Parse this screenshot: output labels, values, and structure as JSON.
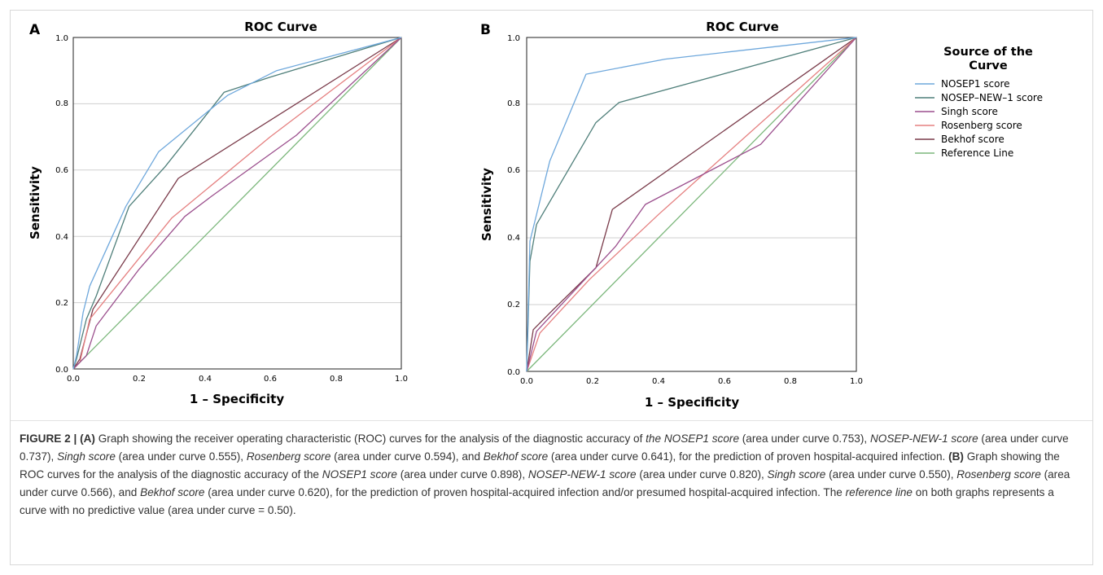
{
  "panels": [
    {
      "panel_label": "A",
      "title": "ROC Curve",
      "xlabel": "1 – Specificity",
      "ylabel": "Sensitivity",
      "x_ticks": [
        "0.0",
        "0.2",
        "0.4",
        "0.6",
        "0.8",
        "1.0"
      ],
      "y_ticks": [
        "0.0",
        "0.2",
        "0.4",
        "0.6",
        "0.8",
        "1.0"
      ]
    },
    {
      "panel_label": "B",
      "title": "ROC Curve",
      "xlabel": "1 – Specificity",
      "ylabel": "Sensitivity",
      "x_ticks": [
        "0.0",
        "0.2",
        "0.4",
        "0.6",
        "0.8",
        "1.0"
      ],
      "y_ticks": [
        "0.0",
        "0.2",
        "0.4",
        "0.6",
        "0.8",
        "1.0"
      ]
    }
  ],
  "legend": {
    "title_line1": "Source of the",
    "title_line2": "Curve",
    "entries": [
      {
        "label": "NOSEP1 score",
        "color": "#6fa8dc"
      },
      {
        "label": "NOSEP–NEW–1 score",
        "color": "#4f7f7a"
      },
      {
        "label": "Singh score",
        "color": "#9b4f8d"
      },
      {
        "label": "Rosenberg score",
        "color": "#e58080"
      },
      {
        "label": "Bekhof score",
        "color": "#7a3b4a"
      },
      {
        "label": "Reference Line",
        "color": "#7bb77b"
      }
    ]
  },
  "caption": {
    "fig_label": "FIGURE 2 |",
    "a_label": "(A)",
    "b_label": "(B)",
    "s01": " Graph showing the receiver operating characteristic (ROC) curves for the analysis of the diagnostic accuracy of ",
    "s02": "the NOSEP1 score",
    "s03": " (area under curve 0.753), ",
    "s04": "NOSEP-NEW-1 score",
    "s05": " (area under curve 0.737), ",
    "s06": "Singh score",
    "s07": " (area under curve 0.555), ",
    "s08": "Rosenberg score",
    "s09": " (area under curve 0.594), and ",
    "s10": "Bekhof score",
    "s11": " (area under curve 0.641), for the prediction of proven hospital-acquired infection. ",
    "s12": " Graph showing the ROC curves for the analysis of the diagnostic accuracy of the ",
    "s13": "NOSEP1 score",
    "s14": " (area under curve 0.898), ",
    "s15": "NOSEP-NEW-1 score",
    "s16": " (area under curve 0.820), ",
    "s17": "Singh score",
    "s18": " (area under curve 0.550), ",
    "s19": "Rosenberg score",
    "s20": " (area under curve 0.566), and ",
    "s21": "Bekhof score",
    "s22": " (area under curve 0.620), for the prediction of proven hospital-acquired infection and/or presumed hospital-acquired infection. The ",
    "s23": "reference line",
    "s24": " on both graphs represents a curve with no predictive value (area under curve = 0.50)."
  },
  "chart_data": [
    {
      "type": "line",
      "panel": "A",
      "title": "ROC Curve",
      "xlabel": "1 – Specificity",
      "ylabel": "Sensitivity",
      "xlim": [
        0,
        1
      ],
      "ylim": [
        0,
        1
      ],
      "grid": "horizontal",
      "series": [
        {
          "name": "NOSEP1 score",
          "color": "#6fa8dc",
          "points": [
            [
              0,
              0
            ],
            [
              0.01,
              0.04
            ],
            [
              0.03,
              0.17
            ],
            [
              0.05,
              0.25
            ],
            [
              0.16,
              0.49
            ],
            [
              0.26,
              0.655
            ],
            [
              0.47,
              0.825
            ],
            [
              0.62,
              0.9
            ],
            [
              1,
              1
            ]
          ]
        },
        {
          "name": "NOSEP–NEW–1 score",
          "color": "#4f7f7a",
          "points": [
            [
              0,
              0
            ],
            [
              0.01,
              0.03
            ],
            [
              0.04,
              0.15
            ],
            [
              0.07,
              0.22
            ],
            [
              0.17,
              0.49
            ],
            [
              0.28,
              0.61
            ],
            [
              0.46,
              0.835
            ],
            [
              0.6,
              0.88
            ],
            [
              1,
              1
            ]
          ]
        },
        {
          "name": "Singh score",
          "color": "#9b4f8d",
          "points": [
            [
              0,
              0
            ],
            [
              0.04,
              0.04
            ],
            [
              0.07,
              0.13
            ],
            [
              0.2,
              0.3
            ],
            [
              0.34,
              0.46
            ],
            [
              0.42,
              0.52
            ],
            [
              0.68,
              0.705
            ],
            [
              1,
              1
            ]
          ]
        },
        {
          "name": "Rosenberg score",
          "color": "#e58080",
          "points": [
            [
              0,
              0
            ],
            [
              0.02,
              0.02
            ],
            [
              0.05,
              0.15
            ],
            [
              0.3,
              0.455
            ],
            [
              0.6,
              0.7
            ],
            [
              1,
              1
            ]
          ]
        },
        {
          "name": "Bekhof score",
          "color": "#7a3b4a",
          "points": [
            [
              0,
              0
            ],
            [
              0.02,
              0.03
            ],
            [
              0.06,
              0.18
            ],
            [
              0.32,
              0.575
            ],
            [
              1,
              1
            ]
          ]
        },
        {
          "name": "Reference Line",
          "color": "#7bb77b",
          "points": [
            [
              0,
              0
            ],
            [
              1,
              1
            ]
          ]
        }
      ]
    },
    {
      "type": "line",
      "panel": "B",
      "title": "ROC Curve",
      "xlabel": "1 – Specificity",
      "ylabel": "Sensitivity",
      "xlim": [
        0,
        1
      ],
      "ylim": [
        0,
        1
      ],
      "grid": "horizontal",
      "series": [
        {
          "name": "NOSEP1 score",
          "color": "#6fa8dc",
          "points": [
            [
              0,
              0
            ],
            [
              0.01,
              0.39
            ],
            [
              0.07,
              0.63
            ],
            [
              0.18,
              0.89
            ],
            [
              0.42,
              0.935
            ],
            [
              1,
              1
            ]
          ]
        },
        {
          "name": "NOSEP–NEW–1 score",
          "color": "#4f7f7a",
          "points": [
            [
              0,
              0
            ],
            [
              0.01,
              0.33
            ],
            [
              0.03,
              0.44
            ],
            [
              0.21,
              0.745
            ],
            [
              0.28,
              0.805
            ],
            [
              1,
              1
            ]
          ]
        },
        {
          "name": "Singh score",
          "color": "#9b4f8d",
          "points": [
            [
              0,
              0
            ],
            [
              0.03,
              0.12
            ],
            [
              0.27,
              0.375
            ],
            [
              0.36,
              0.5
            ],
            [
              0.71,
              0.68
            ],
            [
              1,
              1
            ]
          ]
        },
        {
          "name": "Rosenberg score",
          "color": "#e58080",
          "points": [
            [
              0,
              0
            ],
            [
              0.04,
              0.115
            ],
            [
              0.19,
              0.275
            ],
            [
              0.4,
              0.47
            ],
            [
              1,
              1
            ]
          ]
        },
        {
          "name": "Bekhof score",
          "color": "#7a3b4a",
          "points": [
            [
              0,
              0
            ],
            [
              0.02,
              0.125
            ],
            [
              0.07,
              0.175
            ],
            [
              0.21,
              0.31
            ],
            [
              0.26,
              0.485
            ],
            [
              1,
              1
            ]
          ]
        },
        {
          "name": "Reference Line",
          "color": "#7bb77b",
          "points": [
            [
              0,
              0
            ],
            [
              1,
              1
            ]
          ]
        }
      ]
    }
  ]
}
